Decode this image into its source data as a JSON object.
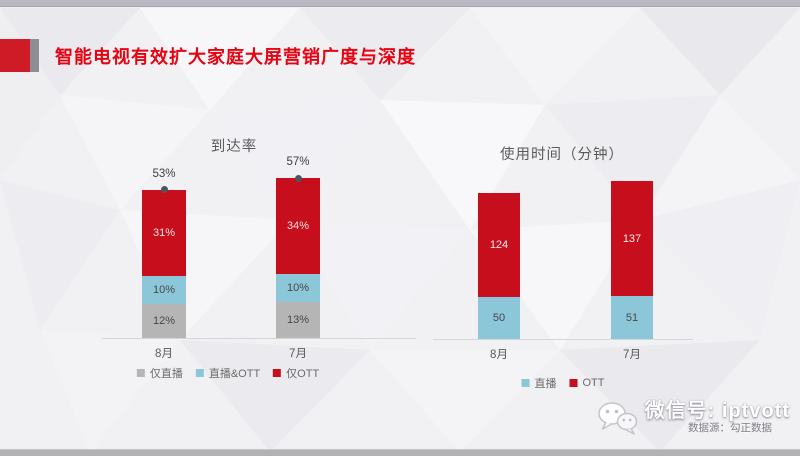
{
  "slide": {
    "title": "智能电视有效扩大家庭大屏营销广度与深度",
    "wechat_label": "微信号: iptvott",
    "source_label": "数据源：勾正数据"
  },
  "colors": {
    "title_red": "#e60413",
    "accent_red": "#ce1b26",
    "accent_gray": "#8d8d93",
    "bar_red": "#c60e1c",
    "bar_blue": "#8cc7d9",
    "bar_gray": "#b5b5b5",
    "marker_dot": "#4f5560"
  },
  "chart_data": [
    {
      "id": "reach",
      "type": "bar",
      "stacked": true,
      "title": "到达率",
      "categories": [
        "8月",
        "7月"
      ],
      "series": [
        {
          "name": "仅直播",
          "color": "#b5b5b5",
          "values": [
            12,
            13
          ],
          "labels": [
            "12%",
            "13%"
          ],
          "label_color": "#474747"
        },
        {
          "name": "直播&OTT",
          "color": "#8cc7d9",
          "values": [
            10,
            10
          ],
          "labels": [
            "10%",
            "10%"
          ],
          "label_color": "#474747"
        },
        {
          "name": "仅OTT",
          "color": "#c60e1c",
          "values": [
            31,
            34
          ],
          "labels": [
            "31%",
            "34%"
          ],
          "label_color": "#f3e3e3"
        }
      ],
      "totals": [
        "53%",
        "57%"
      ],
      "unit": "percent",
      "ylim": [
        0,
        60
      ],
      "grid": false,
      "legend_position": "bottom"
    },
    {
      "id": "usage",
      "type": "bar",
      "stacked": true,
      "title": "使用时间（分钟）",
      "categories": [
        "8月",
        "7月"
      ],
      "series": [
        {
          "name": "直播",
          "color": "#8cc7d9",
          "values": [
            50,
            51
          ],
          "labels": [
            "50",
            "51"
          ],
          "label_color": "#474747"
        },
        {
          "name": "OTT",
          "color": "#c60e1c",
          "values": [
            124,
            137
          ],
          "labels": [
            "124",
            "137"
          ],
          "label_color": "#f6ecec"
        }
      ],
      "totals": null,
      "unit": "minutes",
      "ylim": [
        0,
        200
      ],
      "grid": false,
      "legend_position": "bottom"
    }
  ]
}
